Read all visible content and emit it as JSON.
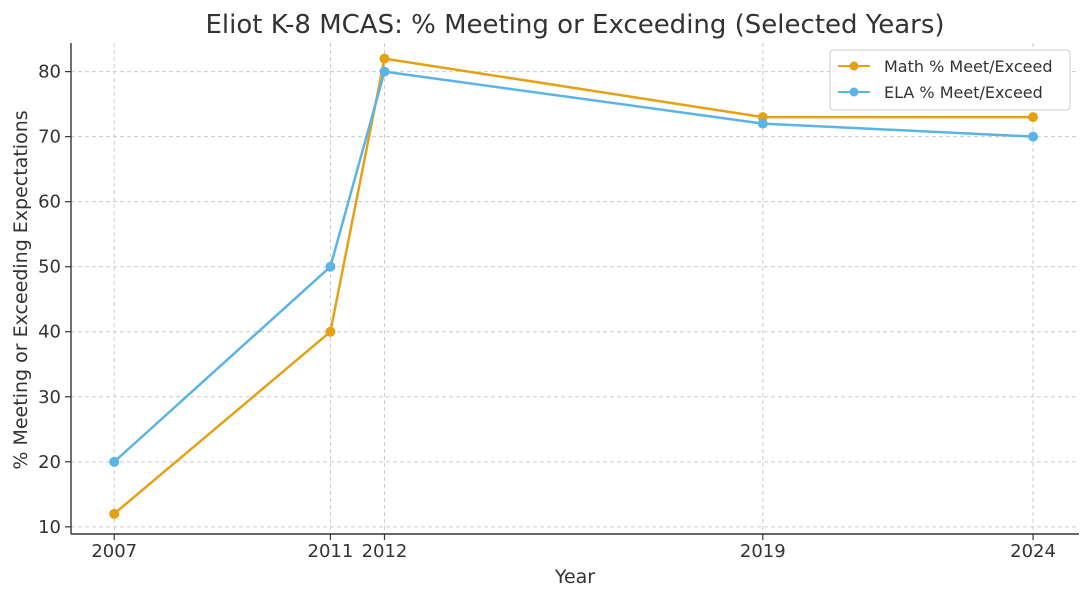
{
  "chart_data": {
    "type": "line",
    "title": "Eliot K-8 MCAS: % Meeting or Exceeding (Selected Years)",
    "xlabel": "Year",
    "ylabel": "% Meeting or Exceeding Expectations",
    "x": [
      2007,
      2011,
      2012,
      2019,
      2024
    ],
    "x_ticks": [
      "2007",
      "2011",
      "2012",
      "2019",
      "2024"
    ],
    "y_ticks": [
      10,
      20,
      30,
      40,
      50,
      60,
      70,
      80
    ],
    "xlim": [
      2006.2,
      2024.85
    ],
    "ylim": [
      8.9,
      84.4
    ],
    "grid": true,
    "legend_position": "top-right",
    "series": [
      {
        "name": "Math % Meet/Exceed",
        "color": "#e5a114",
        "values": [
          12,
          40,
          82,
          73,
          73
        ]
      },
      {
        "name": "ELA % Meet/Exceed",
        "color": "#5ab4e5",
        "values": [
          20,
          50,
          80,
          72,
          70
        ]
      }
    ]
  }
}
